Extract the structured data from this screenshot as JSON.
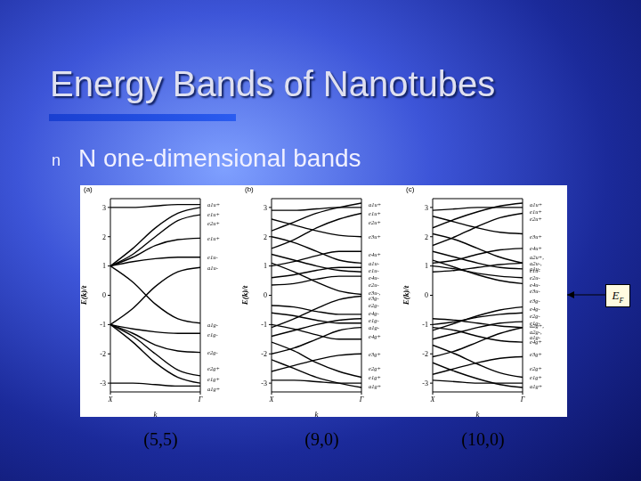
{
  "title": "Energy Bands of Nanotubes",
  "bullet_marker": "n",
  "bullet": "N one-dimensional bands",
  "chart_data": [
    {
      "type": "line",
      "panel": "(a)",
      "caption": "(5,5)",
      "x_label": "k",
      "y_label": "E(k)/t",
      "x": [
        0,
        0.25,
        0.5,
        0.75,
        1
      ],
      "xlim": [
        0,
        1
      ],
      "xticks": [
        {
          "value": 0,
          "label": "X"
        },
        {
          "value": 1,
          "label": "Γ"
        }
      ],
      "ylim": [
        -3.3,
        3.3
      ],
      "yticks": [
        -3,
        -2,
        -1,
        0,
        1,
        2,
        3
      ],
      "color": "#000000",
      "series": [
        {
          "values": [
            1.0,
            1.6,
            2.3,
            2.8,
            3.0
          ]
        },
        {
          "values": [
            1.0,
            1.4,
            2.0,
            2.55,
            2.75
          ]
        },
        {
          "values": [
            1.0,
            1.3,
            1.7,
            1.9,
            1.95
          ]
        },
        {
          "values": [
            1.0,
            1.15,
            1.25,
            1.3,
            1.3
          ]
        },
        {
          "values": [
            3.0,
            3.0,
            3.05,
            3.1,
            3.1
          ]
        },
        {
          "values": [
            1.0,
            0.45,
            -0.3,
            -0.8,
            -0.95
          ]
        },
        {
          "values": [
            -1.0,
            -0.45,
            0.3,
            0.8,
            0.95
          ]
        },
        {
          "values": [
            -1.0,
            -1.6,
            -2.3,
            -2.8,
            -3.0
          ]
        },
        {
          "values": [
            -1.0,
            -1.4,
            -2.0,
            -2.55,
            -2.75
          ]
        },
        {
          "values": [
            -1.0,
            -1.3,
            -1.7,
            -1.9,
            -1.95
          ]
        },
        {
          "values": [
            -1.0,
            -1.15,
            -1.25,
            -1.3,
            -1.3
          ]
        },
        {
          "values": [
            -3.0,
            -3.0,
            -3.05,
            -3.1,
            -3.1
          ]
        }
      ],
      "band_labels": [
        {
          "value": 3.1,
          "label": "a1u+"
        },
        {
          "value": 2.75,
          "label": "e1u+"
        },
        {
          "value": 2.45,
          "label": "e2u+"
        },
        {
          "value": 1.95,
          "label": "e1u+"
        },
        {
          "value": 1.3,
          "label": "e1u-"
        },
        {
          "value": 0.95,
          "label": "a1u-"
        },
        {
          "value": -1.0,
          "label": "a1g-"
        },
        {
          "value": -1.35,
          "label": "e1g-"
        },
        {
          "value": -1.95,
          "label": "e2g-"
        },
        {
          "value": -2.5,
          "label": "e2g+"
        },
        {
          "value": -2.85,
          "label": "e1g+"
        },
        {
          "value": -3.2,
          "label": "a1g+"
        }
      ]
    },
    {
      "type": "line",
      "panel": "(b)",
      "caption": "(9,0)",
      "x_label": "k",
      "y_label": "E(k)/t",
      "x": [
        0,
        0.25,
        0.5,
        0.75,
        1
      ],
      "xlim": [
        0,
        1
      ],
      "xticks": [
        {
          "value": 0,
          "label": "X"
        },
        {
          "value": 1,
          "label": "Γ"
        }
      ],
      "ylim": [
        -3.3,
        3.3
      ],
      "yticks": [
        -3,
        -2,
        -1,
        0,
        1,
        2,
        3
      ],
      "color": "#000000",
      "series": [
        {
          "values": [
            2.2,
            2.5,
            2.8,
            3.0,
            3.15
          ]
        },
        {
          "values": [
            2.9,
            2.9,
            2.95,
            3.0,
            3.0
          ]
        },
        {
          "values": [
            1.6,
            1.9,
            2.3,
            2.6,
            2.8
          ]
        },
        {
          "values": [
            2.6,
            2.4,
            2.2,
            2.05,
            2.0
          ]
        },
        {
          "values": [
            1.0,
            1.15,
            1.35,
            1.5,
            1.5
          ]
        },
        {
          "values": [
            2.0,
            1.8,
            1.5,
            1.2,
            1.1
          ]
        },
        {
          "values": [
            0.6,
            0.7,
            0.85,
            0.95,
            0.95
          ]
        },
        {
          "values": [
            1.4,
            1.2,
            1.0,
            0.85,
            0.8
          ]
        },
        {
          "values": [
            0.35,
            0.4,
            0.55,
            0.65,
            0.65
          ]
        },
        {
          "values": [
            1.1,
            0.8,
            0.45,
            0.15,
            0.03
          ]
        },
        {
          "values": [
            -2.2,
            -2.5,
            -2.8,
            -3.0,
            -3.15
          ]
        },
        {
          "values": [
            -2.9,
            -2.9,
            -2.95,
            -3.0,
            -3.0
          ]
        },
        {
          "values": [
            -1.6,
            -1.9,
            -2.3,
            -2.6,
            -2.8
          ]
        },
        {
          "values": [
            -2.6,
            -2.4,
            -2.2,
            -2.05,
            -2.0
          ]
        },
        {
          "values": [
            -1.0,
            -1.15,
            -1.35,
            -1.5,
            -1.5
          ]
        },
        {
          "values": [
            -2.0,
            -1.8,
            -1.5,
            -1.2,
            -1.1
          ]
        },
        {
          "values": [
            -0.6,
            -0.7,
            -0.85,
            -0.95,
            -0.95
          ]
        },
        {
          "values": [
            -1.4,
            -1.2,
            -1.0,
            -0.85,
            -0.8
          ]
        },
        {
          "values": [
            -0.35,
            -0.4,
            -0.55,
            -0.65,
            -0.65
          ]
        },
        {
          "values": [
            -1.1,
            -0.8,
            -0.45,
            -0.15,
            -0.03
          ]
        }
      ],
      "band_labels": [
        {
          "value": 3.1,
          "label": "a1u+"
        },
        {
          "value": 2.8,
          "label": "e1u+"
        },
        {
          "value": 2.5,
          "label": "e2u+"
        },
        {
          "value": 2.0,
          "label": "e3u+"
        },
        {
          "value": 1.4,
          "label": "e4u+"
        },
        {
          "value": 1.1,
          "label": "a1u-"
        },
        {
          "value": 0.85,
          "label": "e1u-"
        },
        {
          "value": 0.6,
          "label": "e4u-"
        },
        {
          "value": 0.35,
          "label": "e2u-"
        },
        {
          "value": 0,
          "label": "e3u-, e3g-"
        },
        {
          "value": -0.35,
          "label": "e2g-"
        },
        {
          "value": -0.6,
          "label": "e4g-"
        },
        {
          "value": -0.85,
          "label": "e1g-"
        },
        {
          "value": -1.1,
          "label": "a1g-"
        },
        {
          "value": -1.4,
          "label": "e4g+"
        },
        {
          "value": -2.0,
          "label": "e3g+"
        },
        {
          "value": -2.5,
          "label": "e2g+"
        },
        {
          "value": -2.8,
          "label": "e1g+"
        },
        {
          "value": -3.1,
          "label": "a1g+"
        }
      ]
    },
    {
      "type": "line",
      "panel": "(c)",
      "caption": "(10,0)",
      "x_label": "k",
      "y_label": "E(k)/t",
      "x": [
        0,
        0.25,
        0.5,
        0.75,
        1
      ],
      "xlim": [
        0,
        1
      ],
      "xticks": [
        {
          "value": 0,
          "label": "X"
        },
        {
          "value": 1,
          "label": "Γ"
        }
      ],
      "ylim": [
        -3.3,
        3.3
      ],
      "yticks": [
        -3,
        -2,
        -1,
        0,
        1,
        2,
        3
      ],
      "color": "#000000",
      "series": [
        {
          "values": [
            2.3,
            2.6,
            2.85,
            3.05,
            3.15
          ]
        },
        {
          "values": [
            2.9,
            2.95,
            3.0,
            3.0,
            3.0
          ]
        },
        {
          "values": [
            1.7,
            2.0,
            2.35,
            2.65,
            2.8
          ]
        },
        {
          "values": [
            2.7,
            2.5,
            2.3,
            2.15,
            2.1
          ]
        },
        {
          "values": [
            1.1,
            1.2,
            1.4,
            1.55,
            1.6
          ]
        },
        {
          "values": [
            2.1,
            1.9,
            1.6,
            1.3,
            1.1
          ]
        },
        {
          "values": [
            0.8,
            0.85,
            0.95,
            1.05,
            1.1
          ]
        },
        {
          "values": [
            1.5,
            1.3,
            1.1,
            0.95,
            0.9
          ]
        },
        {
          "values": [
            1.0,
            0.9,
            0.75,
            0.65,
            0.6
          ]
        },
        {
          "values": [
            1.2,
            0.95,
            0.7,
            0.5,
            0.4
          ]
        },
        {
          "values": [
            -2.3,
            -2.6,
            -2.85,
            -3.05,
            -3.15
          ]
        },
        {
          "values": [
            -2.9,
            -2.95,
            -3.0,
            -3.0,
            -3.0
          ]
        },
        {
          "values": [
            -1.7,
            -2.0,
            -2.35,
            -2.65,
            -2.8
          ]
        },
        {
          "values": [
            -2.7,
            -2.5,
            -2.3,
            -2.15,
            -2.1
          ]
        },
        {
          "values": [
            -1.1,
            -1.2,
            -1.4,
            -1.55,
            -1.6
          ]
        },
        {
          "values": [
            -2.1,
            -1.9,
            -1.6,
            -1.3,
            -1.1
          ]
        },
        {
          "values": [
            -0.8,
            -0.85,
            -0.95,
            -1.05,
            -1.1
          ]
        },
        {
          "values": [
            -1.5,
            -1.3,
            -1.1,
            -0.95,
            -0.9
          ]
        },
        {
          "values": [
            -1.0,
            -0.9,
            -0.75,
            -0.65,
            -0.6
          ]
        },
        {
          "values": [
            -1.2,
            -0.95,
            -0.7,
            -0.5,
            -0.4
          ]
        }
      ],
      "band_labels": [
        {
          "value": 3.1,
          "label": "a1u+"
        },
        {
          "value": 2.85,
          "label": "e1u+"
        },
        {
          "value": 2.6,
          "label": "e2u+"
        },
        {
          "value": 2.0,
          "label": "e3u+"
        },
        {
          "value": 1.6,
          "label": "e4u+"
        },
        {
          "value": 1.1,
          "label": "a2u+, a2u-, a1u-"
        },
        {
          "value": 0.85,
          "label": "e1u-"
        },
        {
          "value": 0.6,
          "label": "e2u-"
        },
        {
          "value": 0.35,
          "label": "e4u-"
        },
        {
          "value": 0.15,
          "label": "e3u-"
        },
        {
          "value": -0.2,
          "label": "e3g-"
        },
        {
          "value": -0.45,
          "label": "e4g-"
        },
        {
          "value": -0.7,
          "label": "e2g-"
        },
        {
          "value": -0.95,
          "label": "e1g-"
        },
        {
          "value": -1.25,
          "label": "a2g+, a2g-, a1g-"
        },
        {
          "value": -1.6,
          "label": "e4g+"
        },
        {
          "value": -2.0,
          "label": "e3g+"
        },
        {
          "value": -2.5,
          "label": "e2g+"
        },
        {
          "value": -2.8,
          "label": "e1g+"
        },
        {
          "value": -3.1,
          "label": "a1g+"
        }
      ],
      "annotation": {
        "text": "E",
        "subscript": "F",
        "y": 0
      }
    }
  ]
}
